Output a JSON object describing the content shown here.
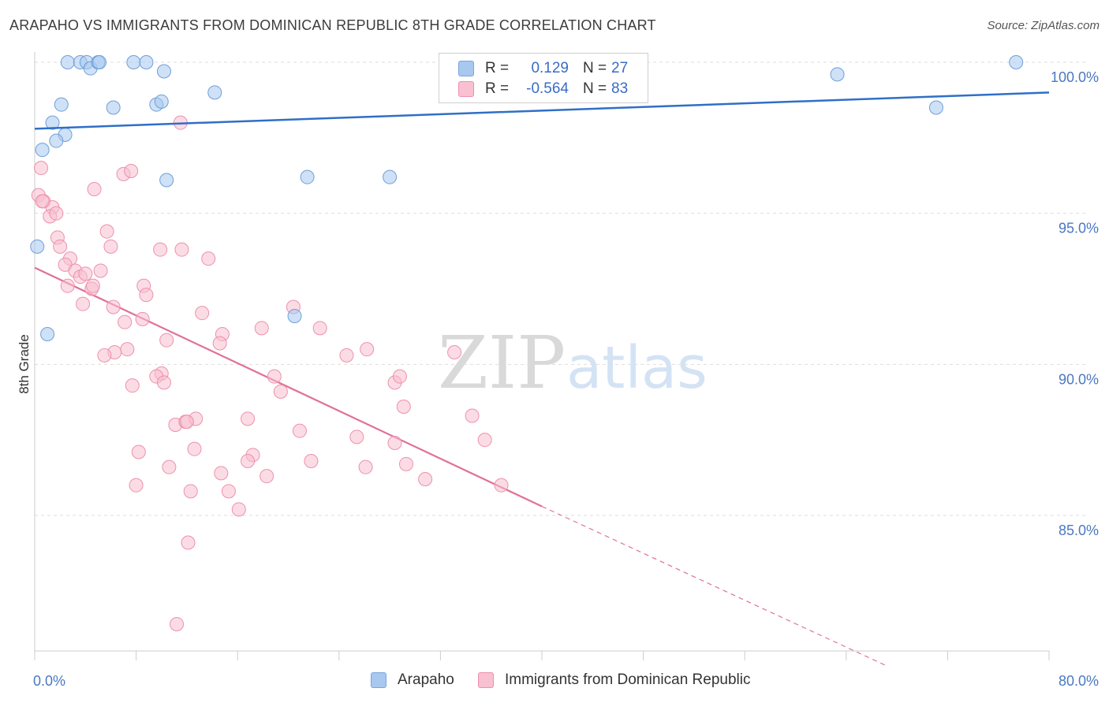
{
  "title": "ARAPAHO VS IMMIGRANTS FROM DOMINICAN REPUBLIC 8TH GRADE CORRELATION CHART",
  "source": "Source: ZipAtlas.com",
  "watermark": {
    "zip": "ZIP",
    "atlas": "atlas"
  },
  "legend": {
    "rows": [
      {
        "r_label": "R =",
        "r_value": "0.129",
        "n_label": "N =",
        "n_value": "27",
        "color": "#a8c8f0",
        "border": "#7aa6dd"
      },
      {
        "r_label": "R =",
        "r_value": "-0.564",
        "n_label": "N =",
        "n_value": "83",
        "color": "#f8c0d0",
        "border": "#ee90ae"
      }
    ]
  },
  "bottom_legend": [
    {
      "label": "Arapaho",
      "color": "#a8c8f0",
      "border": "#7aa6dd"
    },
    {
      "label": "Immigrants from Dominican Republic",
      "color": "#f8c0d0",
      "border": "#ee90ae"
    }
  ],
  "chart_data": {
    "type": "scatter",
    "title": "ARAPAHO VS IMMIGRANTS FROM DOMINICAN REPUBLIC 8TH GRADE CORRELATION CHART",
    "xlabel": "",
    "ylabel": "8th Grade",
    "xlim": [
      0,
      80
    ],
    "ylim": [
      80.0,
      100.8
    ],
    "x_tick_labels": [
      "0.0%",
      "80.0%"
    ],
    "y_ticks": [
      85,
      90,
      95,
      100
    ],
    "y_tick_labels": [
      "85.0%",
      "90.0%",
      "95.0%",
      "100.0%"
    ],
    "grid": true,
    "series": [
      {
        "name": "Arapaho",
        "color": "#a8c8f0",
        "edge": "#6f9fd8",
        "line_color": "#2f6fc8",
        "trend": {
          "x0": 0,
          "y0": 97.8,
          "x1": 80,
          "y1": 99.0
        },
        "points": [
          [
            2.6,
            100.0
          ],
          [
            3.6,
            100.0
          ],
          [
            4.1,
            100.0
          ],
          [
            4.4,
            99.8
          ],
          [
            5.0,
            100.0
          ],
          [
            5.1,
            100.0
          ],
          [
            7.8,
            100.0
          ],
          [
            8.8,
            100.0
          ],
          [
            10.2,
            99.7
          ],
          [
            14.2,
            99.0
          ],
          [
            2.1,
            98.6
          ],
          [
            6.2,
            98.5
          ],
          [
            9.6,
            98.6
          ],
          [
            10.0,
            98.7
          ],
          [
            1.4,
            98.0
          ],
          [
            2.4,
            97.6
          ],
          [
            1.7,
            97.4
          ],
          [
            0.6,
            97.1
          ],
          [
            10.4,
            96.1
          ],
          [
            21.5,
            96.2
          ],
          [
            28.0,
            96.2
          ],
          [
            0.2,
            93.9
          ],
          [
            20.5,
            91.6
          ],
          [
            1.0,
            91.0
          ],
          [
            63.3,
            99.6
          ],
          [
            71.1,
            98.5
          ],
          [
            77.4,
            100.0
          ]
        ]
      },
      {
        "name": "Immigrants from Dominican Republic",
        "color": "#f8c0d0",
        "edge": "#ee90ae",
        "line_color": "#e0709a",
        "trend": {
          "x0": 0,
          "y0": 93.2,
          "x1": 40,
          "y1": 85.3
        },
        "trend_ext": {
          "x0": 40,
          "y0": 85.3,
          "x1": 67.3,
          "y1": 80.0
        },
        "points": [
          [
            0.5,
            96.5
          ],
          [
            0.3,
            95.6
          ],
          [
            0.7,
            95.4
          ],
          [
            1.4,
            95.2
          ],
          [
            1.2,
            94.9
          ],
          [
            1.8,
            94.2
          ],
          [
            2.0,
            93.9
          ],
          [
            2.8,
            93.5
          ],
          [
            2.4,
            93.3
          ],
          [
            3.2,
            93.1
          ],
          [
            3.6,
            92.9
          ],
          [
            2.6,
            92.6
          ],
          [
            5.2,
            93.1
          ],
          [
            4.0,
            93.0
          ],
          [
            4.5,
            92.5
          ],
          [
            3.8,
            92.0
          ],
          [
            11.5,
            98.0
          ],
          [
            7.0,
            96.3
          ],
          [
            7.6,
            96.4
          ],
          [
            4.7,
            95.8
          ],
          [
            5.7,
            94.4
          ],
          [
            6.0,
            93.9
          ],
          [
            9.9,
            93.8
          ],
          [
            11.6,
            93.8
          ],
          [
            13.7,
            93.5
          ],
          [
            8.6,
            92.6
          ],
          [
            8.8,
            92.3
          ],
          [
            6.2,
            91.9
          ],
          [
            7.1,
            91.4
          ],
          [
            8.5,
            91.5
          ],
          [
            13.2,
            91.7
          ],
          [
            17.9,
            91.2
          ],
          [
            20.4,
            91.9
          ],
          [
            22.5,
            91.2
          ],
          [
            14.8,
            91.0
          ],
          [
            10.4,
            90.8
          ],
          [
            14.6,
            90.7
          ],
          [
            7.3,
            90.5
          ],
          [
            6.3,
            90.4
          ],
          [
            5.5,
            90.3
          ],
          [
            24.6,
            90.3
          ],
          [
            26.2,
            90.5
          ],
          [
            33.1,
            90.4
          ],
          [
            10.0,
            89.7
          ],
          [
            9.6,
            89.6
          ],
          [
            10.2,
            89.4
          ],
          [
            7.7,
            89.3
          ],
          [
            18.9,
            89.6
          ],
          [
            19.4,
            89.1
          ],
          [
            28.4,
            89.4
          ],
          [
            28.8,
            89.6
          ],
          [
            29.1,
            88.6
          ],
          [
            34.5,
            88.3
          ],
          [
            11.1,
            88.0
          ],
          [
            11.9,
            88.1
          ],
          [
            12.7,
            88.2
          ],
          [
            16.8,
            88.2
          ],
          [
            20.9,
            87.8
          ],
          [
            25.4,
            87.6
          ],
          [
            28.4,
            87.4
          ],
          [
            35.5,
            87.5
          ],
          [
            8.2,
            87.1
          ],
          [
            12.6,
            87.2
          ],
          [
            17.2,
            87.0
          ],
          [
            16.8,
            86.8
          ],
          [
            21.8,
            86.8
          ],
          [
            26.1,
            86.6
          ],
          [
            29.3,
            86.7
          ],
          [
            10.6,
            86.6
          ],
          [
            14.7,
            86.4
          ],
          [
            18.3,
            86.3
          ],
          [
            30.8,
            86.2
          ],
          [
            8.0,
            86.0
          ],
          [
            12.3,
            85.8
          ],
          [
            15.3,
            85.8
          ],
          [
            16.1,
            85.2
          ],
          [
            36.8,
            86.0
          ],
          [
            12.1,
            84.1
          ],
          [
            11.2,
            81.4
          ],
          [
            0.6,
            95.4
          ],
          [
            1.7,
            95.0
          ],
          [
            4.6,
            92.6
          ],
          [
            12.0,
            88.1
          ]
        ]
      }
    ]
  }
}
